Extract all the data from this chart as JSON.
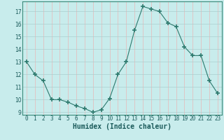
{
  "x": [
    0,
    1,
    2,
    3,
    4,
    5,
    6,
    7,
    8,
    9,
    10,
    11,
    12,
    13,
    14,
    15,
    16,
    17,
    18,
    19,
    20,
    21,
    22,
    23
  ],
  "y": [
    13,
    12,
    11.5,
    10,
    10,
    9.8,
    9.5,
    9.3,
    9,
    9.2,
    10.1,
    12,
    13,
    15.5,
    17.4,
    17.2,
    17.0,
    16.1,
    15.8,
    14.2,
    13.5,
    13.5,
    11.5,
    10.5
  ],
  "line_color": "#2d7a6e",
  "marker": "+",
  "marker_size": 4,
  "marker_lw": 1.2,
  "bg_color": "#c8ecec",
  "grid_color_major": "#aacfcf",
  "grid_color_minor": "#e8b8b8",
  "xlabel": "Humidex (Indice chaleur)",
  "ylim": [
    8.8,
    17.8
  ],
  "xlim": [
    -0.5,
    23.5
  ],
  "yticks": [
    9,
    10,
    11,
    12,
    13,
    14,
    15,
    16,
    17
  ],
  "xticks": [
    0,
    1,
    2,
    3,
    4,
    5,
    6,
    7,
    8,
    9,
    10,
    11,
    12,
    13,
    14,
    15,
    16,
    17,
    18,
    19,
    20,
    21,
    22,
    23
  ],
  "xlabel_fontsize": 7,
  "tick_fontsize": 5.5
}
